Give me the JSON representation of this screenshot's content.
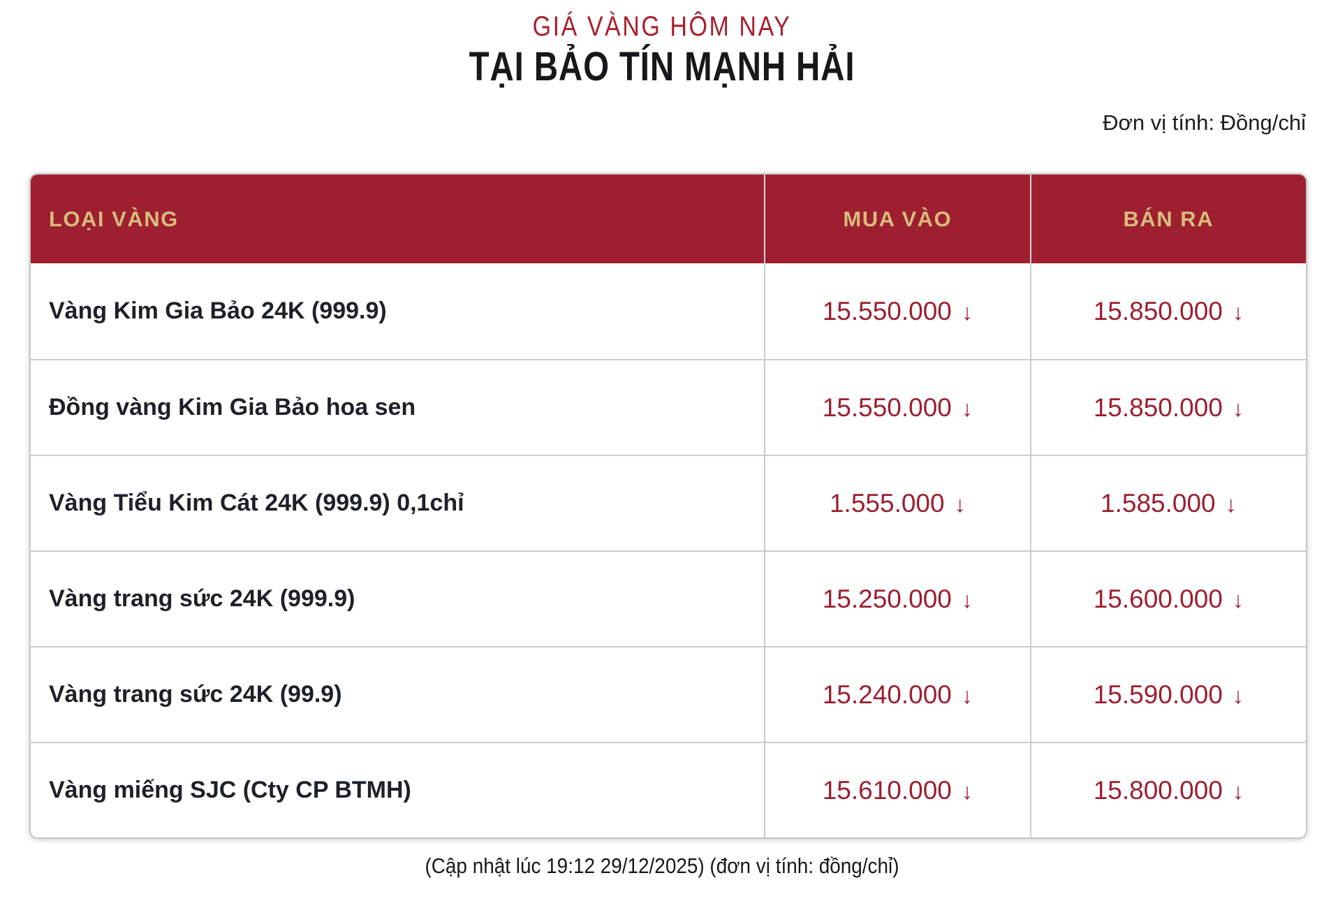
{
  "page": {
    "subtitle": "GIÁ VÀNG HÔM NAY",
    "title": "TẠI BẢO TÍN MẠNH HẢI",
    "unit_note": "Đơn vị tính: Đồng/chỉ",
    "footer_note": "(Cập nhật lúc 19:12 29/12/2025) (đơn vị tính: đồng/chỉ)"
  },
  "colors": {
    "header_bg": "#9E1F2F",
    "header_text_gold": "#D8BB7D",
    "price_red": "#9B1F30",
    "title_red": "#A8202F",
    "text_dark": "#1D2129",
    "grid_line": "#CBCBCB"
  },
  "table": {
    "columns": [
      "LOẠI VÀNG",
      "MUA VÀO",
      "BÁN RA"
    ],
    "trend_arrow": "↓",
    "rows": [
      {
        "type": "Vàng Kim Gia Bảo 24K (999.9)",
        "buy": "15.550.000",
        "buy_trend": "down",
        "sell": "15.850.000",
        "sell_trend": "down"
      },
      {
        "type": "Đồng vàng Kim Gia Bảo hoa sen",
        "buy": "15.550.000",
        "buy_trend": "down",
        "sell": "15.850.000",
        "sell_trend": "down"
      },
      {
        "type": "Vàng Tiểu Kim Cát 24K (999.9) 0,1chỉ",
        "buy": "1.555.000",
        "buy_trend": "down",
        "sell": "1.585.000",
        "sell_trend": "down"
      },
      {
        "type": "Vàng trang sức 24K (999.9)",
        "buy": "15.250.000",
        "buy_trend": "down",
        "sell": "15.600.000",
        "sell_trend": "down"
      },
      {
        "type": "Vàng trang sức 24K (99.9)",
        "buy": "15.240.000",
        "buy_trend": "down",
        "sell": "15.590.000",
        "sell_trend": "down"
      },
      {
        "type": "Vàng miếng SJC (Cty CP BTMH)",
        "buy": "15.610.000",
        "buy_trend": "down",
        "sell": "15.800.000",
        "sell_trend": "down"
      }
    ]
  }
}
